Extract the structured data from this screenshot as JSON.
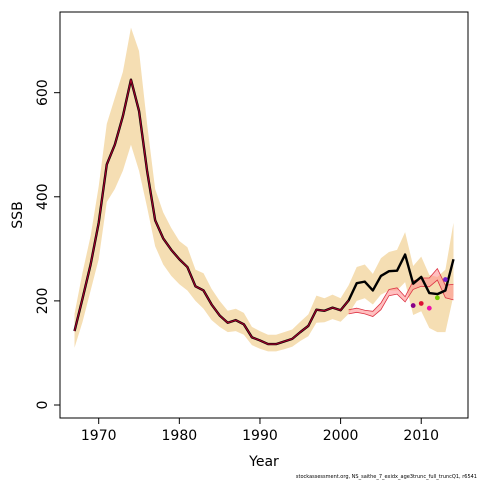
{
  "chart_data": {
    "type": "line",
    "xlabel": "Year",
    "ylabel": "SSB",
    "caption": "stockassessment.org, NS_saithe_7_exidx_age3trunc_full_truncQ1, r6541",
    "xlim": [
      1965.2,
      2015.8
    ],
    "ylim": [
      -25,
      755
    ],
    "x_ticks": [
      1970,
      1980,
      1990,
      2000,
      2010
    ],
    "y_ticks": [
      0,
      200,
      400,
      600
    ],
    "grid": false,
    "colors": {
      "band": "#f5deb3",
      "base": "#000000",
      "overlay": "#a0002a",
      "retro_fill": "#ff8c8c",
      "retro_line": "#dd3344"
    },
    "years": [
      1967,
      1968,
      1969,
      1970,
      1971,
      1972,
      1973,
      1974,
      1975,
      1976,
      1977,
      1978,
      1979,
      1980,
      1981,
      1982,
      1983,
      1984,
      1985,
      1986,
      1987,
      1988,
      1989,
      1990,
      1991,
      1992,
      1993,
      1994,
      1995,
      1996,
      1997,
      1998,
      1999,
      2000,
      2001,
      2002,
      2003,
      2004,
      2005,
      2006,
      2007,
      2008,
      2009,
      2010,
      2011,
      2012,
      2013,
      2014
    ],
    "ssb": [
      142,
      205,
      270,
      350,
      462,
      500,
      555,
      625,
      565,
      450,
      355,
      320,
      298,
      280,
      265,
      228,
      220,
      193,
      172,
      158,
      163,
      155,
      130,
      124,
      117,
      117,
      122,
      127,
      140,
      152,
      183,
      181,
      187,
      182,
      201,
      234,
      237,
      220,
      248,
      257,
      258,
      289,
      233,
      246,
      215,
      213,
      220,
      280
    ],
    "lower": [
      110,
      160,
      220,
      280,
      390,
      415,
      450,
      500,
      450,
      380,
      305,
      270,
      248,
      232,
      220,
      200,
      185,
      163,
      150,
      140,
      142,
      135,
      115,
      108,
      103,
      103,
      107,
      112,
      123,
      132,
      158,
      159,
      165,
      160,
      175,
      200,
      205,
      193,
      212,
      220,
      220,
      236,
      173,
      180,
      148,
      140,
      140,
      210
    ],
    "upper": [
      175,
      255,
      325,
      420,
      540,
      590,
      640,
      725,
      680,
      540,
      415,
      370,
      340,
      315,
      303,
      260,
      253,
      223,
      200,
      181,
      185,
      177,
      150,
      142,
      135,
      135,
      140,
      145,
      160,
      174,
      210,
      205,
      212,
      205,
      230,
      265,
      270,
      252,
      282,
      294,
      298,
      332,
      267,
      285,
      250,
      246,
      260,
      350
    ],
    "retro_lower": [
      175,
      178,
      175,
      170,
      183,
      210,
      213,
      198,
      222,
      228,
      227,
      240,
      206,
      202
    ],
    "retro_upper": [
      183,
      186,
      182,
      180,
      196,
      222,
      225,
      208,
      238,
      244,
      244,
      262,
      230,
      232
    ],
    "retro_points": [
      {
        "year": 2009,
        "ssb": 191,
        "color": "#880088"
      },
      {
        "year": 2010,
        "ssb": 195,
        "color": "#dd1133"
      },
      {
        "year": 2011,
        "ssb": 186,
        "color": "#ee11aa"
      },
      {
        "year": 2012,
        "ssb": 206,
        "color": "#77cc00"
      },
      {
        "year": 2013,
        "ssb": 241,
        "color": "#7722cc"
      }
    ]
  }
}
